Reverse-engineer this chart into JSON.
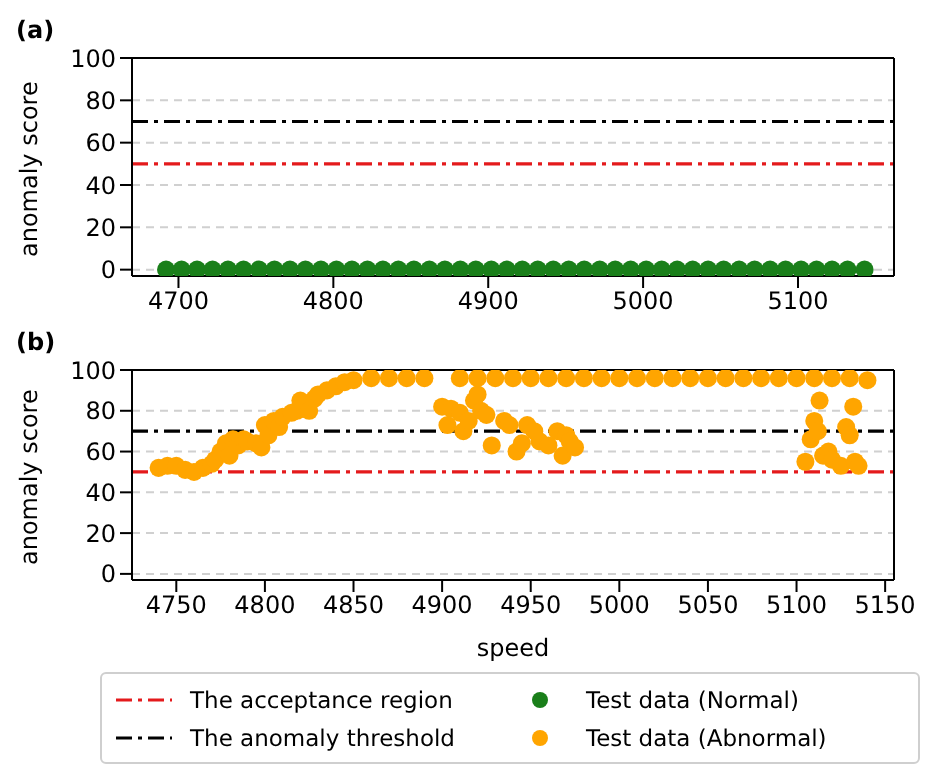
{
  "chart_data": [
    {
      "type": "scatter",
      "title": "(a)",
      "ylabel": "anomaly score",
      "xlim": [
        4670,
        5162
      ],
      "xticks": [
        4700,
        4800,
        4900,
        5000,
        5100
      ],
      "ylim": [
        -3,
        100
      ],
      "yticks": [
        0,
        20,
        40,
        60,
        80,
        100
      ],
      "grid": "y",
      "marker": "circle",
      "ref_lines": [
        {
          "axis": "y",
          "value": 50,
          "color": "#e41a1c",
          "line_style": "dashdot"
        },
        {
          "axis": "y",
          "value": 70,
          "color": "#000000",
          "line_style": "dashdot"
        }
      ],
      "series": [
        {
          "name": "Test data (Normal)",
          "color": "#1a7f1a",
          "x": [
            4692,
            4702,
            4712,
            4722,
            4732,
            4742,
            4752,
            4762,
            4772,
            4782,
            4792,
            4802,
            4812,
            4822,
            4832,
            4842,
            4852,
            4862,
            4872,
            4882,
            4892,
            4902,
            4912,
            4922,
            4932,
            4942,
            4952,
            4962,
            4972,
            4982,
            4992,
            5002,
            5012,
            5022,
            5032,
            5042,
            5052,
            5062,
            5072,
            5082,
            5092,
            5102,
            5112,
            5122,
            5132,
            5143
          ],
          "values": [
            0,
            0,
            0,
            0,
            0,
            0,
            0,
            0,
            0,
            0,
            0,
            0,
            0,
            0,
            0,
            0,
            0,
            0,
            0,
            0,
            0,
            0,
            0,
            0,
            0,
            0,
            0,
            0,
            0,
            0,
            0,
            0,
            0,
            0,
            0,
            0,
            0,
            0,
            0,
            0,
            0,
            0,
            0,
            0,
            0,
            0
          ]
        }
      ]
    },
    {
      "type": "scatter",
      "title": "(b)",
      "xlabel": "speed",
      "ylabel": "anomaly score",
      "xlim": [
        4725,
        5155
      ],
      "xticks": [
        4750,
        4800,
        4850,
        4900,
        4950,
        5000,
        5050,
        5100,
        5150
      ],
      "ylim": [
        -3,
        100
      ],
      "yticks": [
        0,
        20,
        40,
        60,
        80,
        100
      ],
      "grid": "y",
      "marker": "circle",
      "legend": "bottom",
      "ref_lines": [
        {
          "axis": "y",
          "value": 50,
          "color": "#e41a1c",
          "line_style": "dashdot",
          "label": "The acceptance region"
        },
        {
          "axis": "y",
          "value": 70,
          "color": "#000000",
          "line_style": "dashdot",
          "label": "The anomaly threshold"
        }
      ],
      "series": [
        {
          "name": "Test data (Abnormal)",
          "color": "#ffa500",
          "x": [
            4740,
            4745,
            4750,
            4755,
            4760,
            4765,
            4770,
            4772,
            4775,
            4778,
            4780,
            4782,
            4785,
            4788,
            4790,
            4795,
            4798,
            4800,
            4802,
            4805,
            4808,
            4810,
            4815,
            4818,
            4820,
            4825,
            4828,
            4830,
            4835,
            4840,
            4845,
            4850,
            4860,
            4870,
            4880,
            4890,
            4900,
            4903,
            4905,
            4910,
            4912,
            4915,
            4918,
            4920,
            4922,
            4925,
            4928,
            4935,
            4938,
            4942,
            4945,
            4948,
            4952,
            4955,
            4960,
            4965,
            4968,
            4970,
            4972,
            4975,
            4910,
            4920,
            4930,
            4940,
            4950,
            4960,
            4970,
            4980,
            4990,
            5000,
            5010,
            5020,
            5030,
            5040,
            5050,
            5060,
            5070,
            5080,
            5090,
            5100,
            5105,
            5108,
            5110,
            5112,
            5113,
            5115,
            5118,
            5120,
            5125,
            5128,
            5130,
            5132,
            5133,
            5135,
            5110,
            5120,
            5130,
            5140
          ],
          "values": [
            52,
            53,
            53,
            51,
            50,
            52,
            54,
            56,
            60,
            64,
            58,
            66,
            63,
            66,
            65,
            64,
            62,
            73,
            68,
            75,
            72,
            77,
            79,
            80,
            85,
            80,
            86,
            88,
            90,
            92,
            94,
            95,
            96,
            96,
            96,
            96,
            82,
            73,
            81,
            79,
            70,
            75,
            85,
            88,
            80,
            78,
            63,
            75,
            73,
            60,
            64,
            73,
            70,
            65,
            63,
            70,
            58,
            68,
            65,
            62,
            96,
            96,
            96,
            96,
            96,
            96,
            96,
            96,
            96,
            96,
            96,
            96,
            96,
            96,
            96,
            96,
            96,
            96,
            96,
            96,
            55,
            66,
            75,
            70,
            85,
            58,
            60,
            56,
            53,
            72,
            68,
            82,
            55,
            53,
            96,
            96,
            96,
            95
          ]
        }
      ]
    }
  ]
}
